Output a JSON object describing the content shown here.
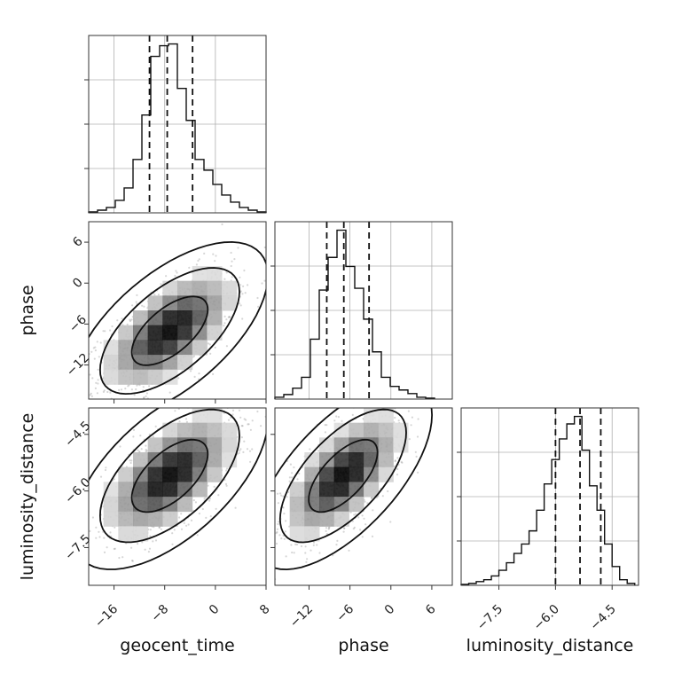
{
  "chart_data": {
    "type": "corner",
    "parameters": [
      "geocent_time",
      "phase",
      "luminosity_distance"
    ],
    "axis_labels": {
      "x": [
        "geocent_time",
        "phase",
        "luminosity_distance"
      ],
      "y": [
        "",
        "phase",
        "luminosity_distance"
      ]
    },
    "ranges": {
      "geocent_time": [
        -20,
        8
      ],
      "phase": [
        -17,
        9
      ],
      "luminosity_distance": [
        -8.5,
        -3.8
      ]
    },
    "ticks": {
      "geocent_time": [
        "-16",
        "-8",
        "0",
        "8"
      ],
      "phase": [
        "-12",
        "-6",
        "0",
        "6"
      ],
      "luminosity_distance": [
        "-7.5",
        "-6.0",
        "-4.5"
      ]
    },
    "quantiles": {
      "geocent_time": [
        -10.4,
        -7.6,
        -3.6
      ],
      "phase": [
        -9.4,
        -6.9,
        -3.2
      ],
      "luminosity_distance": [
        -6.0,
        -5.35,
        -4.8
      ]
    },
    "histograms": {
      "geocent_time": {
        "bin_edges": [
          -20,
          -18.6,
          -17.2,
          -15.8,
          -14.4,
          -13,
          -11.6,
          -10.2,
          -8.8,
          -7.4,
          -6,
          -4.6,
          -3.2,
          -1.8,
          -0.4,
          1,
          2.4,
          3.8,
          5.2,
          6.6,
          8
        ],
        "counts": [
          0.5,
          1.5,
          3,
          7,
          14,
          30,
          55,
          88,
          94,
          95,
          70,
          52,
          30,
          24,
          16,
          10,
          6,
          3,
          1.5,
          0.5
        ]
      },
      "phase": {
        "bin_edges": [
          -17,
          -15.7,
          -14.4,
          -13.1,
          -11.8,
          -10.5,
          -9.2,
          -7.9,
          -6.6,
          -5.3,
          -4,
          -2.7,
          -1.4,
          -0.1,
          1.2,
          2.5,
          3.8,
          5.1,
          6.4
        ],
        "counts": [
          1,
          2.5,
          6,
          12,
          33,
          60,
          78,
          93,
          73,
          61,
          44,
          26,
          12,
          7,
          5,
          3,
          1,
          0.5
        ]
      },
      "luminosity_distance": {
        "bin_edges": [
          -8.5,
          -8.3,
          -8.1,
          -7.9,
          -7.7,
          -7.5,
          -7.3,
          -7.1,
          -6.9,
          -6.7,
          -6.5,
          -6.3,
          -6.1,
          -5.9,
          -5.7,
          -5.5,
          -5.3,
          -5.1,
          -4.9,
          -4.7,
          -4.5,
          -4.3,
          -4.1,
          -3.9
        ],
        "counts": [
          0.5,
          1,
          2,
          3,
          5,
          8,
          12,
          17,
          22,
          29,
          40,
          54,
          67,
          78,
          86,
          90,
          72,
          53,
          40,
          22,
          10,
          3,
          1
        ]
      }
    },
    "panels_2d": [
      {
        "x": "geocent_time",
        "y": "phase",
        "mean": [
          -7.2,
          -7.0
        ],
        "sd": [
          5.0,
          4.2
        ],
        "rho": 0.62
      },
      {
        "x": "geocent_time",
        "y": "luminosity_distance",
        "mean": [
          -7.2,
          -5.6
        ],
        "sd": [
          5.0,
          0.8
        ],
        "rho": 0.6
      },
      {
        "x": "phase",
        "y": "luminosity_distance",
        "mean": [
          -7.0,
          -5.6
        ],
        "sd": [
          4.2,
          0.8
        ],
        "rho": 0.65
      }
    ],
    "contour_levels": [
      "1 sigma",
      "2 sigma",
      "3 sigma"
    ],
    "colors": {
      "line": "#111111",
      "points": "#8a8a8a",
      "density": "#000000",
      "grid": "#b0b0b0"
    }
  }
}
